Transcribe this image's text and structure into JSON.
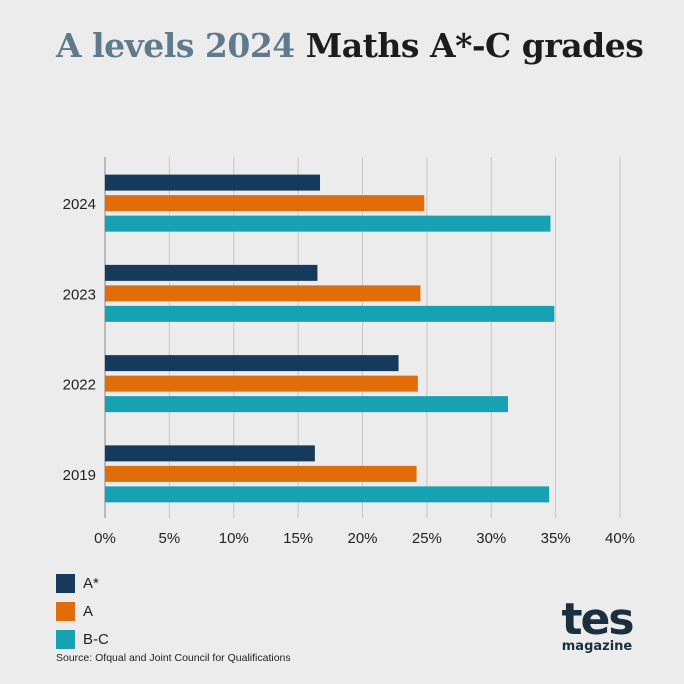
{
  "header": {
    "title_part1": "A levels 2024",
    "title_part2": "Maths A*-C grades"
  },
  "chart_data": {
    "type": "bar",
    "orientation": "horizontal",
    "categories": [
      "2024",
      "2023",
      "2022",
      "2019"
    ],
    "series": [
      {
        "name": "A*",
        "color": "#153a5b",
        "values": [
          16.7,
          16.5,
          22.8,
          16.3
        ]
      },
      {
        "name": "A",
        "color": "#e36c0a",
        "values": [
          24.8,
          24.5,
          24.3,
          24.2
        ]
      },
      {
        "name": "B-C",
        "color": "#17a2b3",
        "values": [
          34.6,
          34.9,
          31.3,
          34.5
        ]
      }
    ],
    "xlim": [
      0,
      40
    ],
    "xticks": [
      "0%",
      "5%",
      "10%",
      "15%",
      "20%",
      "25%",
      "30%",
      "35%",
      "40%"
    ],
    "grid": true,
    "legend_position": "bottom-left"
  },
  "source": "Source: Ofqual and Joint Council for Qualifications",
  "logo": {
    "word": "tes",
    "sub": "magazine"
  }
}
